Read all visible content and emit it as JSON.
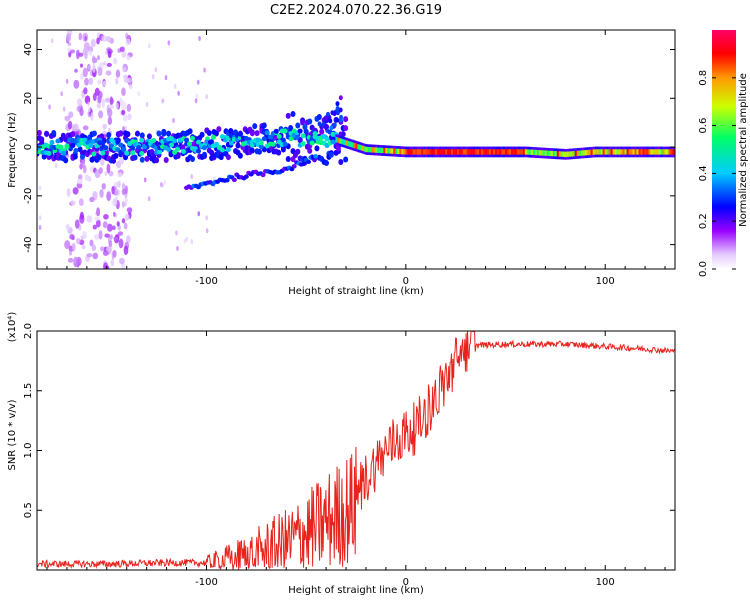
{
  "title": "C2E2.2024.070.22.36.G19",
  "chart_data": [
    {
      "type": "heatmap",
      "title": "C2E2.2024.070.22.36.G19",
      "xlabel": "Height of straight line (km)",
      "ylabel": "Frequency (Hz)",
      "xlim": [
        -185,
        135
      ],
      "ylim": [
        -50,
        48
      ],
      "xticks": [
        -100,
        0,
        100
      ],
      "xtick_labels": [
        "-100",
        "0",
        "100"
      ],
      "yticks": [
        40,
        20,
        0,
        -20,
        -40
      ],
      "ytick_labels": [
        "40",
        "20",
        "0",
        "-20",
        "-40"
      ],
      "colorbar": {
        "label": "Normalized spectral amplitude",
        "range": [
          0,
          1
        ],
        "ticks": [
          0.0,
          0.2,
          0.4,
          0.6,
          0.8
        ],
        "tick_labels": [
          "0.0",
          "0.2",
          "0.4",
          "0.6",
          "0.8"
        ],
        "colormap": [
          "#ffffff",
          "#e6ccff",
          "#9900ff",
          "#0000ff",
          "#00ccff",
          "#00ff66",
          "#ccff00",
          "#ff9900",
          "#ff0000",
          "#ff0066"
        ]
      },
      "ridge": [
        {
          "x": -185,
          "freq": 0
        },
        {
          "x": -140,
          "freq": 0
        },
        {
          "x": -100,
          "freq": 1
        },
        {
          "x": -60,
          "freq": 4
        },
        {
          "x": -35,
          "freq": 3
        },
        {
          "x": -20,
          "freq": -1
        },
        {
          "x": 0,
          "freq": -2
        },
        {
          "x": 60,
          "freq": -2
        },
        {
          "x": 80,
          "freq": -3
        },
        {
          "x": 95,
          "freq": -2
        },
        {
          "x": 135,
          "freq": -2
        }
      ],
      "secondary_track": [
        {
          "x": -110,
          "freq": -17
        },
        {
          "x": -90,
          "freq": -13
        },
        {
          "x": -60,
          "freq": -9
        },
        {
          "x": -45,
          "freq": -4
        }
      ]
    },
    {
      "type": "line",
      "xlabel": "Height of straight line (km)",
      "ylabel": "SNR (10 * v/v)",
      "y_multiplier_label": "(x10⁴)",
      "xlim": [
        -185,
        135
      ],
      "ylim": [
        0,
        2.0
      ],
      "xticks": [
        -100,
        0,
        100
      ],
      "xtick_labels": [
        "-100",
        "0",
        "100"
      ],
      "yticks": [
        0.5,
        1.0,
        1.5,
        2.0
      ],
      "ytick_labels": [
        "0.5",
        "1.0",
        "1.5",
        "2.0"
      ],
      "series": [
        {
          "color": "#e8221c",
          "points": [
            {
              "x": -185,
              "y": 0.05
            },
            {
              "x": -150,
              "y": 0.05
            },
            {
              "x": -120,
              "y": 0.06
            },
            {
              "x": -100,
              "y": 0.06
            },
            {
              "x": -80,
              "y": 0.12
            },
            {
              "x": -60,
              "y": 0.22
            },
            {
              "x": -45,
              "y": 0.35
            },
            {
              "x": -35,
              "y": 0.45
            },
            {
              "x": -25,
              "y": 0.55
            },
            {
              "x": -15,
              "y": 0.8
            },
            {
              "x": -5,
              "y": 1.0
            },
            {
              "x": 5,
              "y": 1.1
            },
            {
              "x": 15,
              "y": 1.35
            },
            {
              "x": 25,
              "y": 1.65
            },
            {
              "x": 35,
              "y": 1.88
            },
            {
              "x": 50,
              "y": 1.89
            },
            {
              "x": 80,
              "y": 1.89
            },
            {
              "x": 100,
              "y": 1.87
            },
            {
              "x": 120,
              "y": 1.85
            },
            {
              "x": 135,
              "y": 1.83
            }
          ]
        }
      ]
    }
  ]
}
